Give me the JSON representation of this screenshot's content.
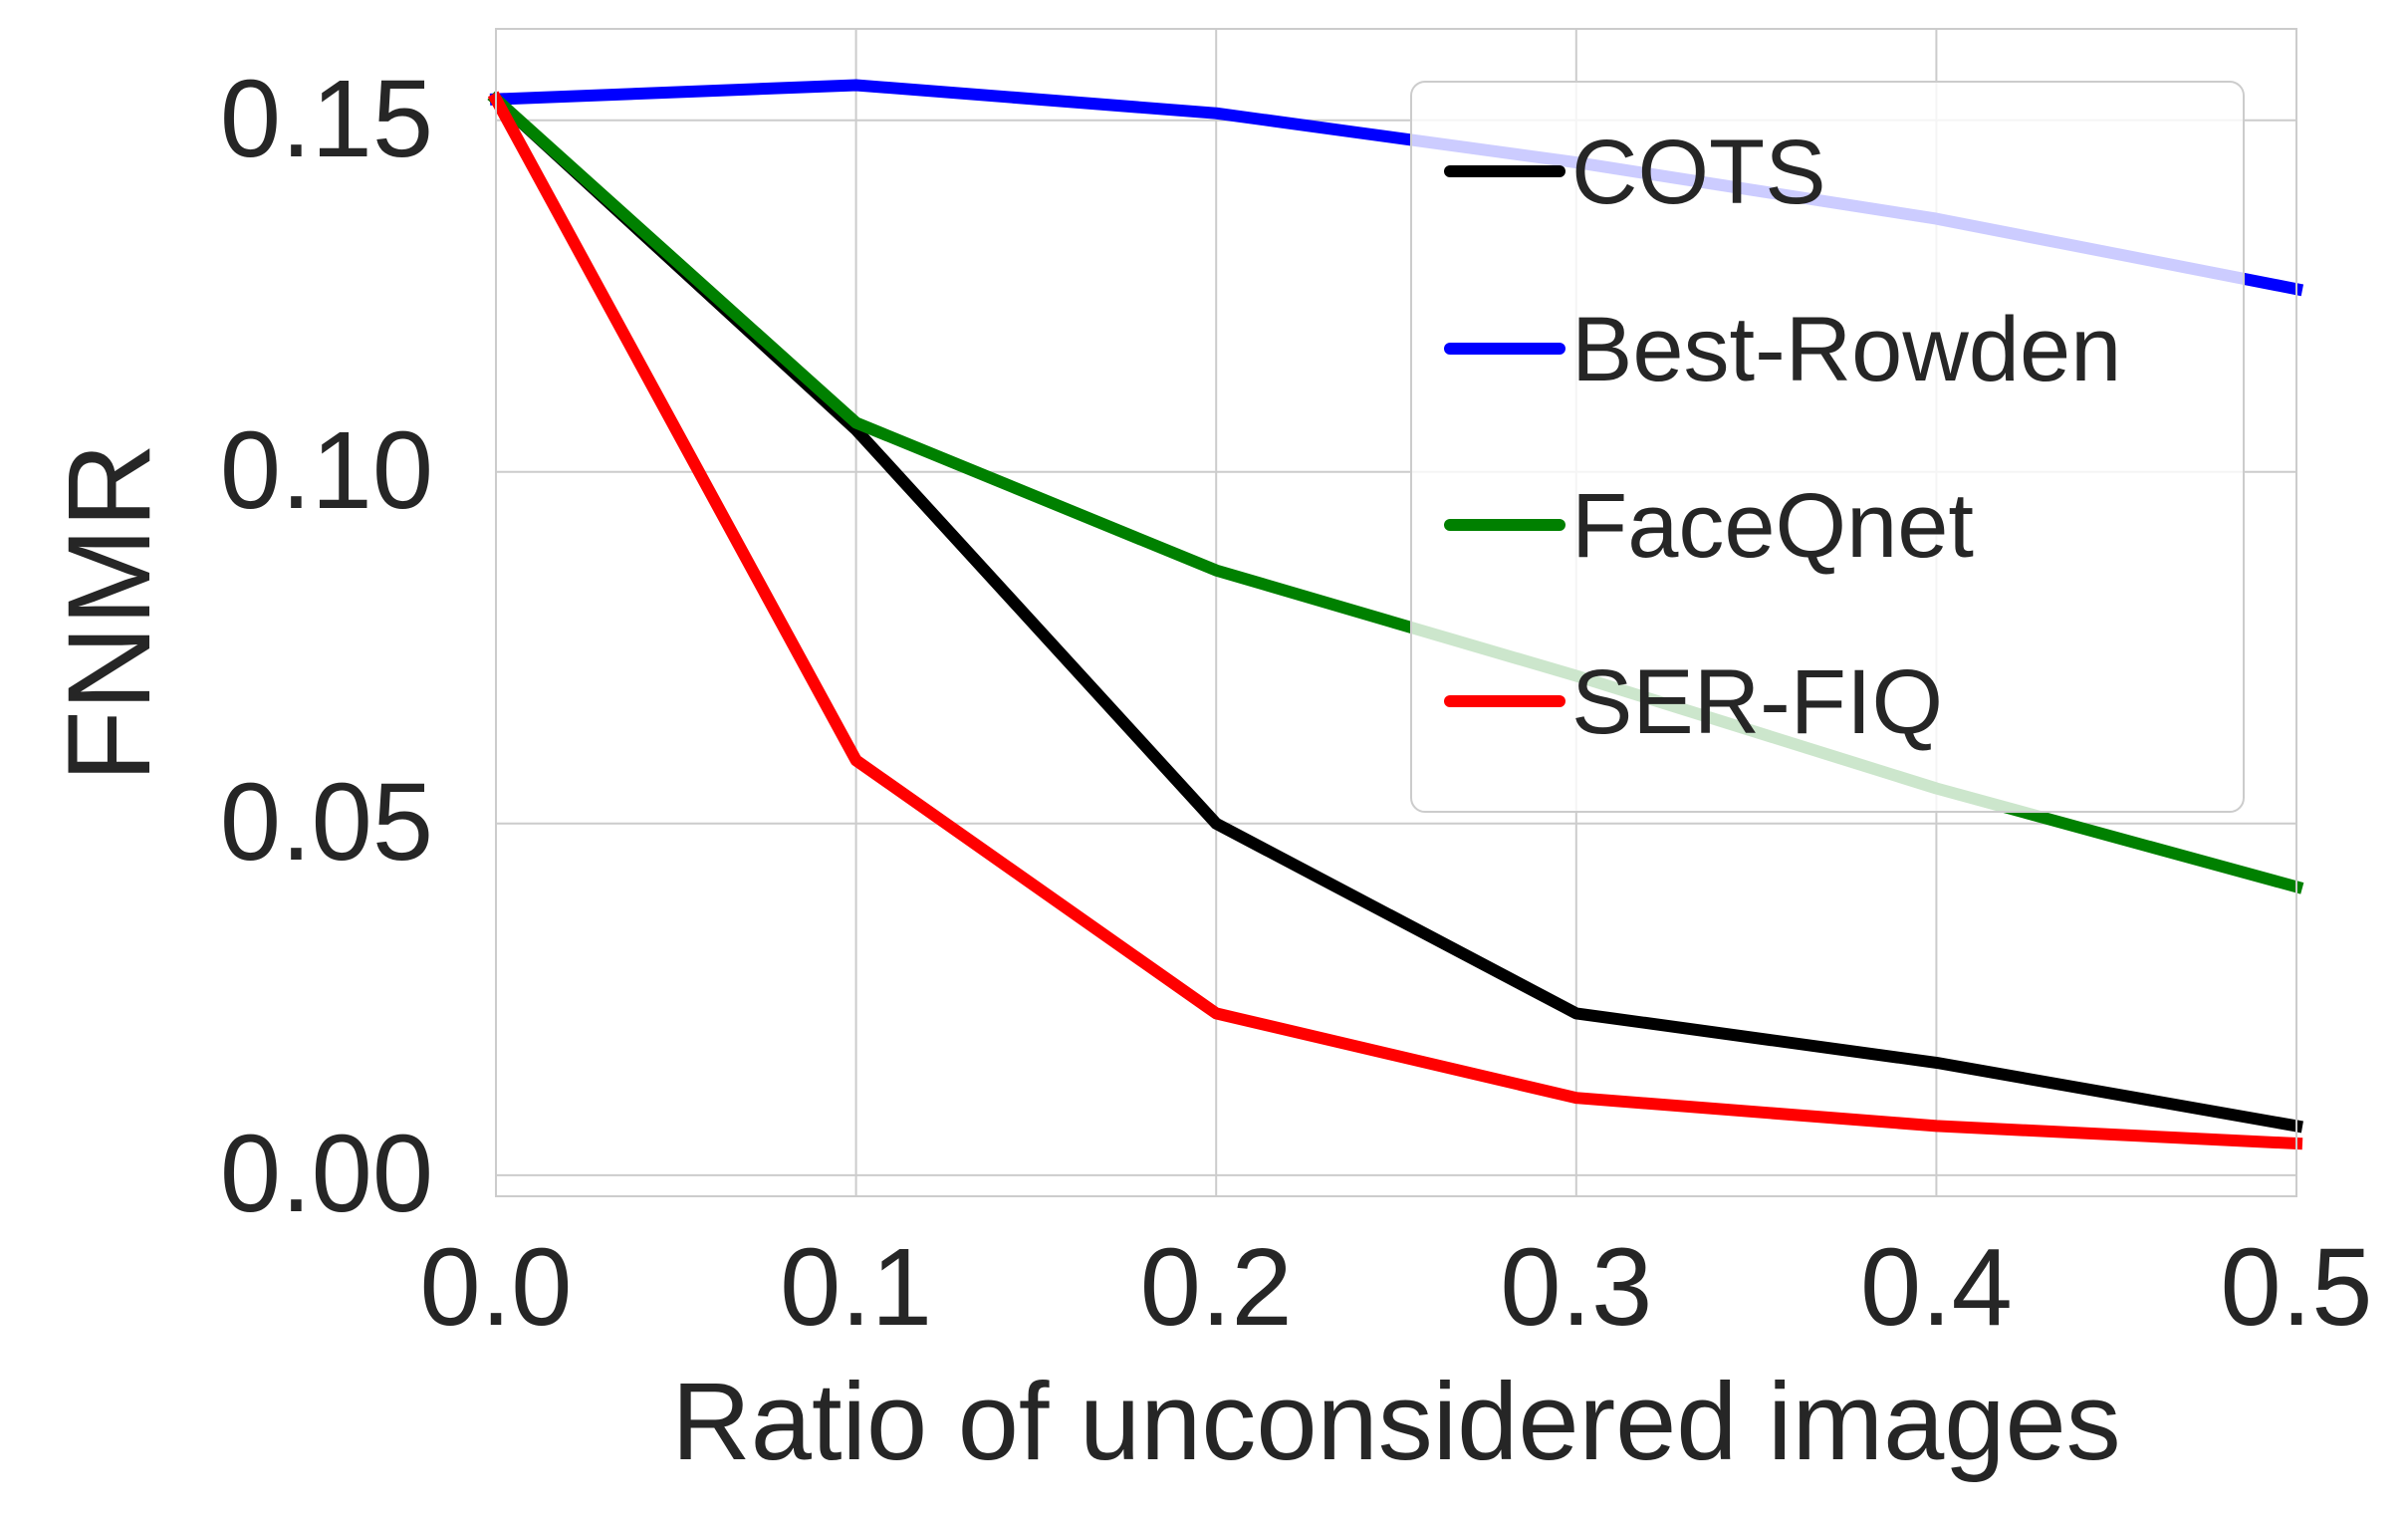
{
  "chart_data": {
    "type": "line",
    "title": "",
    "xlabel": "Ratio of unconsidered images",
    "ylabel": "FNMR",
    "x": [
      0.0,
      0.1,
      0.2,
      0.3,
      0.4,
      0.5
    ],
    "xlim": [
      0.0,
      0.5
    ],
    "ylim": [
      -0.003,
      0.163
    ],
    "xticks": [
      0.0,
      0.1,
      0.2,
      0.3,
      0.4,
      0.5
    ],
    "xtick_labels": [
      "0.0",
      "0.1",
      "0.2",
      "0.3",
      "0.4",
      "0.5"
    ],
    "yticks": [
      0.0,
      0.05,
      0.1,
      0.15
    ],
    "ytick_labels": [
      "0.00",
      "0.05",
      "0.10",
      "0.15"
    ],
    "grid": true,
    "legend_position": "top-right",
    "series": [
      {
        "name": "COTS",
        "color": "#000000",
        "values": [
          0.153,
          0.106,
          0.05,
          0.023,
          0.016,
          0.007
        ]
      },
      {
        "name": "Best-Rowden",
        "color": "#0000ff",
        "values": [
          0.153,
          0.155,
          0.151,
          0.144,
          0.136,
          0.126
        ]
      },
      {
        "name": "FaceQnet",
        "color": "#008000",
        "values": [
          0.153,
          0.107,
          0.086,
          0.071,
          0.055,
          0.041
        ]
      },
      {
        "name": "SER-FIQ",
        "color": "#ff0000",
        "values": [
          0.153,
          0.059,
          0.023,
          0.011,
          0.007,
          0.0045
        ]
      }
    ]
  }
}
